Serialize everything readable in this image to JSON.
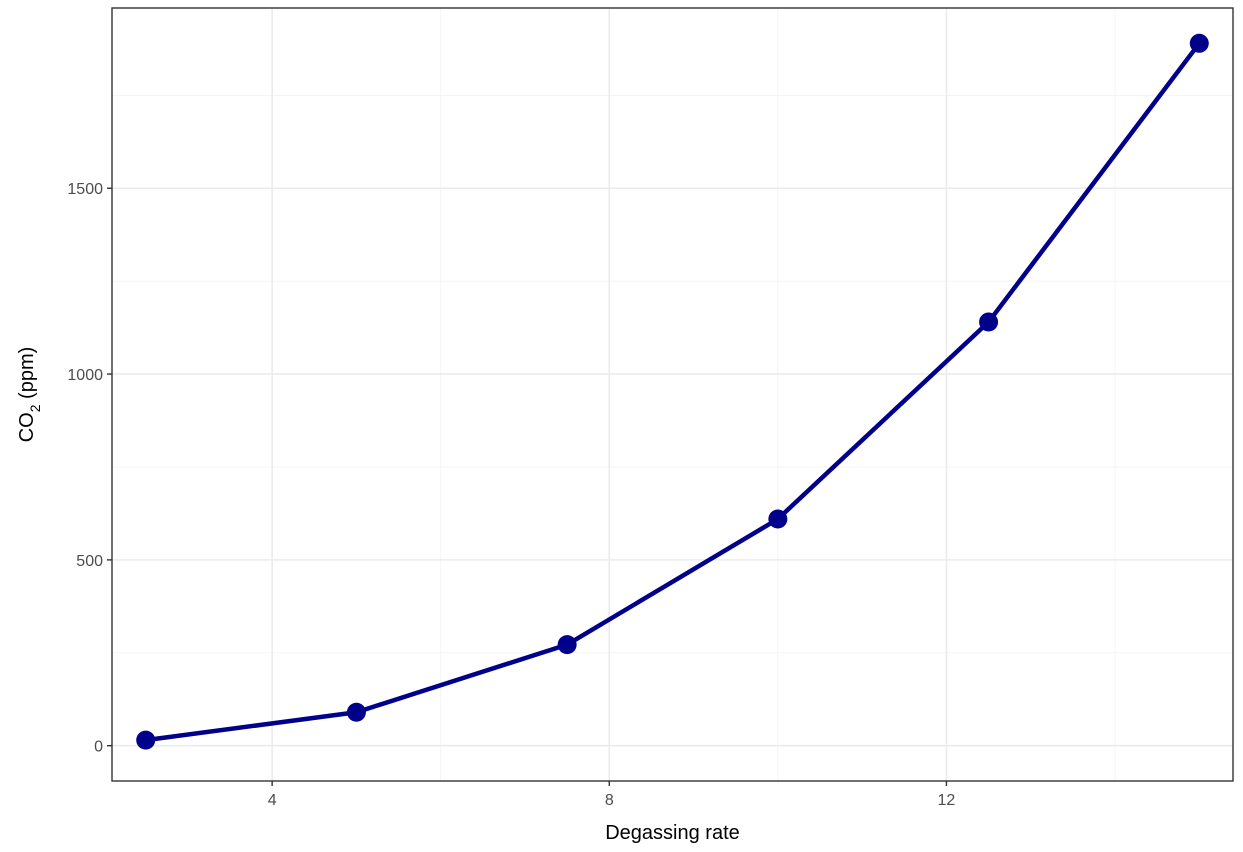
{
  "chart_data": {
    "type": "line",
    "title": "",
    "xlabel": "Degassing rate",
    "ylabel": {
      "prefix": "CO",
      "subscript": "2",
      "suffix": " (ppm)"
    },
    "xlim": [
      2.1,
      15.4
    ],
    "ylim": [
      -95,
      1985
    ],
    "x_ticks": [
      4,
      8,
      12
    ],
    "x_tick_labels": [
      "4",
      "8",
      "12"
    ],
    "x_minor": [
      2,
      6,
      10,
      14
    ],
    "y_ticks": [
      0,
      500,
      1000,
      1500
    ],
    "y_tick_labels": [
      "0",
      "500",
      "1000",
      "1500"
    ],
    "y_minor": [
      250,
      750,
      1250,
      1750
    ],
    "grid": true,
    "series": [
      {
        "color": "#00008b",
        "x": [
          2.5,
          5.0,
          7.5,
          10.0,
          12.5,
          15.0
        ],
        "y": [
          15,
          90,
          272,
          610,
          1140,
          1890
        ]
      }
    ]
  }
}
